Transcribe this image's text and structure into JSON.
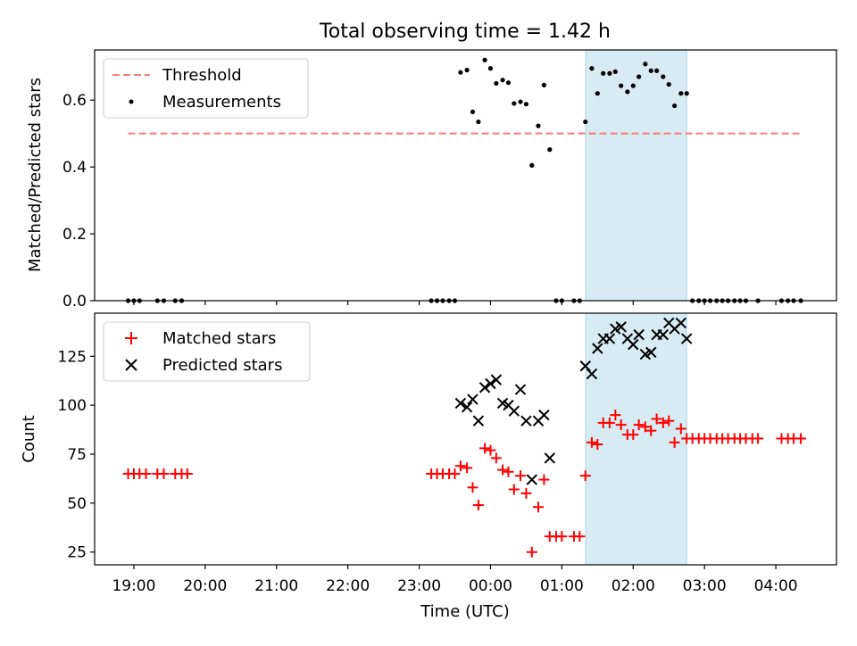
{
  "colors": {
    "threshold": "#ff7a7a",
    "measurement": "#000000",
    "matched": "#ff0000",
    "predicted": "#000000",
    "shade": "#add8e6"
  },
  "chart_data": {
    "title": "Total observing time = 1.42 h",
    "xlabel": "Time (UTC)",
    "x_unit": "hours since 00:00 UTC (negative = before midnight)",
    "xlim": [
      -5.55,
      4.85
    ],
    "xticks": [
      -5,
      -4,
      -3,
      -2,
      -1,
      0,
      1,
      2,
      3,
      4
    ],
    "xtick_labels": [
      "19:00",
      "20:00",
      "21:00",
      "22:00",
      "23:00",
      "00:00",
      "01:00",
      "02:00",
      "03:00",
      "04:00"
    ],
    "shaded_span": [
      1.333,
      2.75
    ],
    "panels": [
      {
        "type": "scatter",
        "ylabel": "Matched/Predicted stars",
        "ylim": [
          0,
          0.75
        ],
        "yticks": [
          0.0,
          0.2,
          0.4,
          0.6
        ],
        "ytick_labels": [
          "0.0",
          "0.2",
          "0.4",
          "0.6"
        ],
        "legend": {
          "position": "top-left",
          "entries": [
            "Threshold",
            "Measurements"
          ]
        },
        "threshold": {
          "name": "Threshold",
          "value": 0.5,
          "x_range": [
            -5.08,
            4.35
          ]
        },
        "series": [
          {
            "name": "Measurements",
            "points": [
              [
                -5.08,
                0.0
              ],
              [
                -5.0,
                0.0
              ],
              [
                -4.92,
                0.0
              ],
              [
                -4.67,
                0.0
              ],
              [
                -4.58,
                0.0
              ],
              [
                -4.42,
                0.0
              ],
              [
                -4.33,
                0.0
              ],
              [
                -0.83,
                0.0
              ],
              [
                -0.75,
                0.0
              ],
              [
                -0.67,
                0.0
              ],
              [
                -0.58,
                0.0
              ],
              [
                -0.5,
                0.0
              ],
              [
                -0.42,
                0.683
              ],
              [
                -0.33,
                0.69
              ],
              [
                -0.25,
                0.565
              ],
              [
                -0.17,
                0.535
              ],
              [
                -0.08,
                0.72
              ],
              [
                0.0,
                0.695
              ],
              [
                0.08,
                0.65
              ],
              [
                0.17,
                0.66
              ],
              [
                0.25,
                0.652
              ],
              [
                0.33,
                0.59
              ],
              [
                0.42,
                0.595
              ],
              [
                0.5,
                0.588
              ],
              [
                0.58,
                0.405
              ],
              [
                0.67,
                0.523
              ],
              [
                0.75,
                0.645
              ],
              [
                0.83,
                0.452
              ],
              [
                0.92,
                0.0
              ],
              [
                1.0,
                0.0
              ],
              [
                1.17,
                0.0
              ],
              [
                1.25,
                0.0
              ],
              [
                1.33,
                0.535
              ],
              [
                1.42,
                0.695
              ],
              [
                1.5,
                0.62
              ],
              [
                1.58,
                0.68
              ],
              [
                1.67,
                0.68
              ],
              [
                1.75,
                0.685
              ],
              [
                1.83,
                0.643
              ],
              [
                1.92,
                0.625
              ],
              [
                2.0,
                0.643
              ],
              [
                2.08,
                0.67
              ],
              [
                2.17,
                0.708
              ],
              [
                2.25,
                0.688
              ],
              [
                2.33,
                0.688
              ],
              [
                2.42,
                0.67
              ],
              [
                2.5,
                0.647
              ],
              [
                2.58,
                0.583
              ],
              [
                2.67,
                0.62
              ],
              [
                2.75,
                0.62
              ],
              [
                2.83,
                0.0
              ],
              [
                2.92,
                0.0
              ],
              [
                3.0,
                0.0
              ],
              [
                3.08,
                0.0
              ],
              [
                3.17,
                0.0
              ],
              [
                3.25,
                0.0
              ],
              [
                3.33,
                0.0
              ],
              [
                3.42,
                0.0
              ],
              [
                3.5,
                0.0
              ],
              [
                3.58,
                0.0
              ],
              [
                3.75,
                0.0
              ],
              [
                4.08,
                0.0
              ],
              [
                4.17,
                0.0
              ],
              [
                4.25,
                0.0
              ],
              [
                4.35,
                0.0
              ]
            ]
          }
        ]
      },
      {
        "type": "scatter",
        "ylabel": "Count",
        "ylim": [
          18.5,
          147
        ],
        "yticks": [
          25,
          50,
          75,
          100,
          125
        ],
        "ytick_labels": [
          "25",
          "50",
          "75",
          "100",
          "125"
        ],
        "legend": {
          "position": "top-left",
          "entries": [
            "Matched stars",
            "Predicted stars"
          ]
        },
        "series": [
          {
            "name": "Matched stars",
            "marker": "plus",
            "points": [
              [
                -5.08,
                65
              ],
              [
                -5.0,
                65
              ],
              [
                -4.92,
                65
              ],
              [
                -4.83,
                65
              ],
              [
                -4.67,
                65
              ],
              [
                -4.58,
                65
              ],
              [
                -4.42,
                65
              ],
              [
                -4.33,
                65
              ],
              [
                -4.25,
                65
              ],
              [
                -0.83,
                65
              ],
              [
                -0.75,
                65
              ],
              [
                -0.67,
                65
              ],
              [
                -0.58,
                65
              ],
              [
                -0.5,
                65
              ],
              [
                -0.42,
                69
              ],
              [
                -0.33,
                68
              ],
              [
                -0.25,
                58
              ],
              [
                -0.17,
                49
              ],
              [
                -0.08,
                78
              ],
              [
                0.0,
                77
              ],
              [
                0.08,
                73
              ],
              [
                0.17,
                67
              ],
              [
                0.25,
                66
              ],
              [
                0.33,
                57
              ],
              [
                0.42,
                64
              ],
              [
                0.5,
                55
              ],
              [
                0.58,
                25
              ],
              [
                0.67,
                48
              ],
              [
                0.75,
                62
              ],
              [
                0.83,
                33
              ],
              [
                0.92,
                33
              ],
              [
                1.0,
                33
              ],
              [
                1.17,
                33
              ],
              [
                1.25,
                33
              ],
              [
                1.33,
                64
              ],
              [
                1.42,
                81
              ],
              [
                1.5,
                80
              ],
              [
                1.58,
                91
              ],
              [
                1.67,
                91
              ],
              [
                1.75,
                95
              ],
              [
                1.83,
                90
              ],
              [
                1.92,
                85
              ],
              [
                2.0,
                85
              ],
              [
                2.08,
                90
              ],
              [
                2.17,
                89
              ],
              [
                2.25,
                87
              ],
              [
                2.33,
                93
              ],
              [
                2.42,
                91
              ],
              [
                2.5,
                92
              ],
              [
                2.58,
                81
              ],
              [
                2.67,
                88
              ],
              [
                2.75,
                83
              ],
              [
                2.83,
                83
              ],
              [
                2.92,
                83
              ],
              [
                3.0,
                83
              ],
              [
                3.08,
                83
              ],
              [
                3.17,
                83
              ],
              [
                3.25,
                83
              ],
              [
                3.33,
                83
              ],
              [
                3.42,
                83
              ],
              [
                3.5,
                83
              ],
              [
                3.58,
                83
              ],
              [
                3.67,
                83
              ],
              [
                3.75,
                83
              ],
              [
                4.08,
                83
              ],
              [
                4.17,
                83
              ],
              [
                4.25,
                83
              ],
              [
                4.35,
                83
              ]
            ]
          },
          {
            "name": "Predicted stars",
            "marker": "x",
            "points": [
              [
                -0.42,
                101
              ],
              [
                -0.33,
                99
              ],
              [
                -0.25,
                103
              ],
              [
                -0.17,
                92
              ],
              [
                -0.08,
                109
              ],
              [
                0.0,
                111
              ],
              [
                0.08,
                113
              ],
              [
                0.17,
                101
              ],
              [
                0.25,
                100
              ],
              [
                0.33,
                97
              ],
              [
                0.42,
                108
              ],
              [
                0.5,
                92
              ],
              [
                0.58,
                62
              ],
              [
                0.67,
                92
              ],
              [
                0.75,
                95
              ],
              [
                0.83,
                73
              ],
              [
                1.33,
                120
              ],
              [
                1.42,
                116
              ],
              [
                1.5,
                129
              ],
              [
                1.58,
                134
              ],
              [
                1.67,
                134
              ],
              [
                1.75,
                139
              ],
              [
                1.83,
                140
              ],
              [
                1.92,
                134
              ],
              [
                2.0,
                131
              ],
              [
                2.08,
                136
              ],
              [
                2.17,
                126
              ],
              [
                2.25,
                127
              ],
              [
                2.33,
                136
              ],
              [
                2.42,
                136
              ],
              [
                2.5,
                142
              ],
              [
                2.58,
                139
              ],
              [
                2.67,
                142
              ],
              [
                2.75,
                134
              ]
            ]
          }
        ]
      }
    ]
  }
}
